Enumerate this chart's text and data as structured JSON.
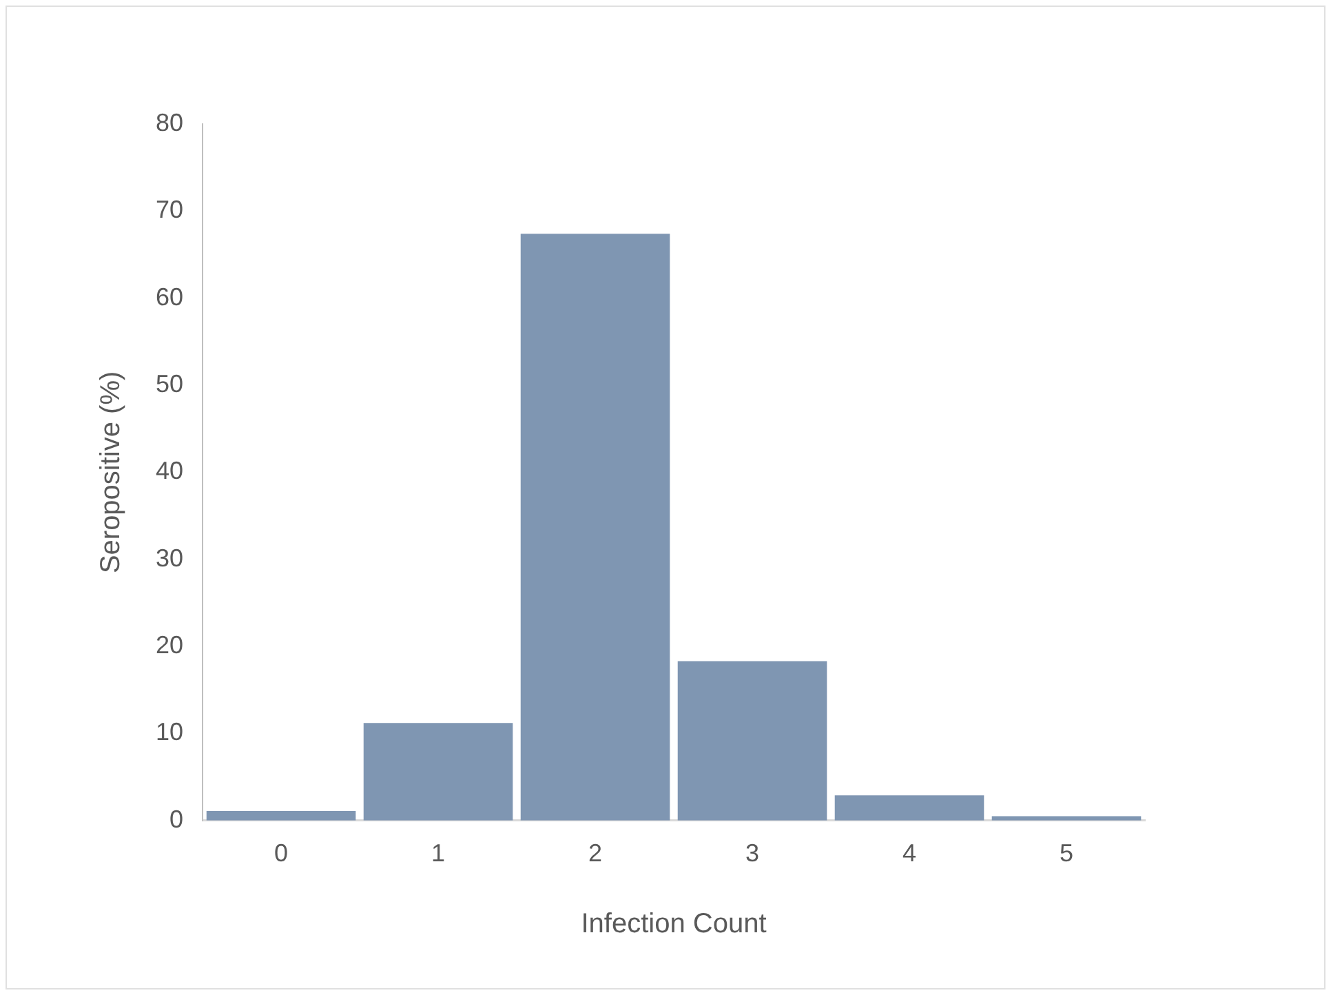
{
  "chart_data": {
    "type": "bar",
    "xlabel": "Infection Count",
    "ylabel": "Seropositive (%)",
    "categories": [
      "0",
      "1",
      "2",
      "3",
      "4",
      "5"
    ],
    "values": [
      1.1,
      11.2,
      67.4,
      18.3,
      2.9,
      0.5
    ],
    "color": "#7f96b2",
    "ylim": [
      0,
      80
    ],
    "yticks": [
      0,
      10,
      20,
      30,
      40,
      50,
      60,
      70,
      80
    ],
    "grid": false,
    "legend": false
  }
}
